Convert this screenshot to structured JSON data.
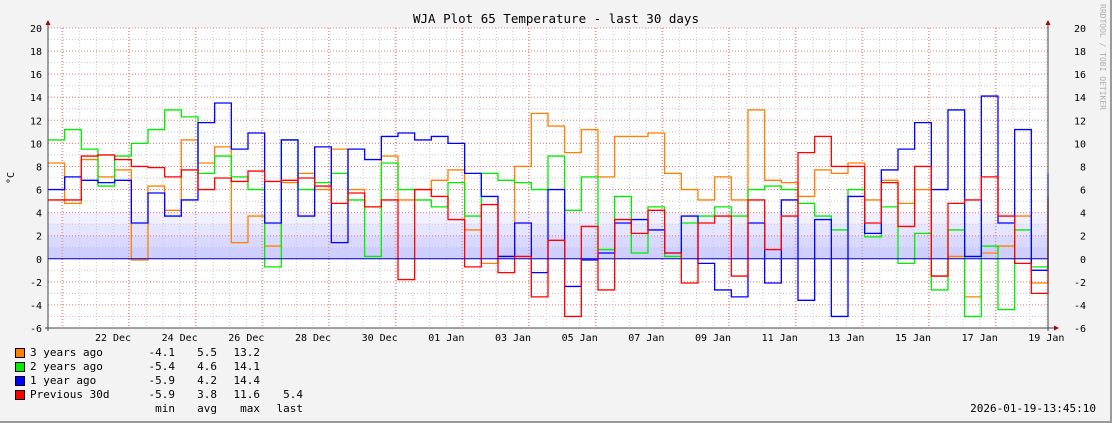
{
  "chart_data": {
    "type": "line",
    "title": "WJA Plot 65 Temperature - last 30 days",
    "ylabel": "°C",
    "watermark": "RRDTOOL / TOBI OETIKER",
    "ylim": [
      -6,
      20
    ],
    "yticks": [
      -6,
      -4,
      -2,
      0,
      2,
      4,
      6,
      8,
      10,
      12,
      14,
      16,
      18,
      20
    ],
    "x_range_days": [
      0,
      30
    ],
    "sample_interval_days": 0.5,
    "xticks": [
      {
        "day": 1.95,
        "label": "22 Dec"
      },
      {
        "day": 3.95,
        "label": "24 Dec"
      },
      {
        "day": 5.95,
        "label": "26 Dec"
      },
      {
        "day": 7.95,
        "label": "28 Dec"
      },
      {
        "day": 9.95,
        "label": "30 Dec"
      },
      {
        "day": 11.95,
        "label": "01 Jan"
      },
      {
        "day": 13.95,
        "label": "03 Jan"
      },
      {
        "day": 15.95,
        "label": "05 Jan"
      },
      {
        "day": 17.95,
        "label": "07 Jan"
      },
      {
        "day": 19.95,
        "label": "09 Jan"
      },
      {
        "day": 21.95,
        "label": "11 Jan"
      },
      {
        "day": 23.95,
        "label": "13 Jan"
      },
      {
        "day": 25.95,
        "label": "15 Jan"
      },
      {
        "day": 27.95,
        "label": "17 Jan"
      },
      {
        "day": 29.95,
        "label": "19 Jan"
      }
    ],
    "band": {
      "from": 0,
      "to": 4,
      "color": "#ccccff"
    },
    "grid": true,
    "series": [
      {
        "name": "3 years ago",
        "color": "#ff8000",
        "min": "-4.1",
        "avg": "5.5",
        "max": "13.2",
        "last": "",
        "values": [
          8.3,
          4.8,
          8.6,
          7.1,
          7.7,
          -0.1,
          6.3,
          4.2,
          10.3,
          8.3,
          9.7,
          1.4,
          3.7,
          1.1,
          6.6,
          7.4,
          6,
          9.5,
          6,
          4.5,
          8.9,
          5.1,
          6,
          6.8,
          7.7,
          2.5,
          -0.4,
          0.2,
          8,
          12.6,
          11.5,
          9.2,
          11.2,
          7.1,
          10.6,
          10.6,
          10.9,
          7.4,
          6,
          5.1,
          7.1,
          5.1,
          12.9,
          6.8,
          6.6,
          5.4,
          7.7,
          7.4,
          8.3,
          5.1,
          6.8,
          4.8,
          6,
          -1.5,
          0.2,
          -3.3,
          0.5,
          1.1,
          3.7,
          -2.1,
          3.7
        ]
      },
      {
        "name": "2 years ago",
        "color": "#00ee00",
        "min": "-5.4",
        "avg": "4.6",
        "max": "14.1",
        "last": "",
        "values": [
          10.3,
          11.2,
          9.5,
          6.3,
          8.9,
          10,
          11.2,
          12.9,
          12.3,
          7.4,
          8.9,
          7.1,
          6,
          -0.7,
          10.3,
          6,
          6.6,
          7.4,
          5.1,
          0.2,
          8.3,
          6,
          5.1,
          4.5,
          6.6,
          3.7,
          7.4,
          6.8,
          6.6,
          6,
          8.9,
          4.2,
          7.1,
          0.8,
          5.4,
          0.5,
          4.5,
          0.2,
          3.1,
          3.7,
          4.5,
          3.7,
          6,
          6.3,
          6,
          4.8,
          3.7,
          2.5,
          6,
          1.9,
          4.5,
          -0.4,
          2.2,
          -2.7,
          2.5,
          -5,
          1.1,
          -4.4,
          2.5,
          -0.7,
          5.1
        ]
      },
      {
        "name": "1 year ago",
        "color": "#0000ff",
        "min": "-5.9",
        "avg": "4.2",
        "max": "14.4",
        "last": "",
        "values": [
          6,
          7.1,
          6.8,
          6.6,
          6.8,
          3.1,
          5.7,
          3.7,
          5.1,
          11.8,
          13.5,
          9.5,
          10.9,
          3.1,
          10.3,
          3.7,
          9.7,
          1.4,
          9.5,
          8.6,
          10.6,
          10.9,
          10.3,
          10.6,
          10,
          7.4,
          5.4,
          0.2,
          3.1,
          -1.2,
          6,
          -2.4,
          -0.1,
          0.5,
          3.1,
          3.4,
          2.5,
          0.5,
          3.7,
          -0.4,
          -2.7,
          -3.3,
          3.1,
          -2.1,
          5.1,
          -3.6,
          3.4,
          -5,
          5.4,
          2.2,
          7.7,
          9.5,
          11.8,
          6,
          12.9,
          0.2,
          14.1,
          3.1,
          11.2,
          -1,
          7.4
        ]
      },
      {
        "name": "Previous 30d",
        "color": "#ff0000",
        "min": "-5.9",
        "avg": "3.8",
        "max": "11.6",
        "last": "5.4",
        "values": [
          5.1,
          5.1,
          8.9,
          9,
          8.6,
          8,
          7.9,
          7.1,
          7.7,
          6,
          7,
          6.7,
          7.6,
          6.7,
          6.8,
          7,
          6.3,
          4.8,
          5.7,
          4.5,
          5.1,
          -1.8,
          6,
          5.4,
          3.4,
          -0.7,
          4.7,
          -1.2,
          0.2,
          -3.3,
          1.6,
          -5,
          2.8,
          -2.7,
          3.4,
          2.2,
          4.2,
          0.5,
          -2.1,
          3.1,
          3.7,
          -1.5,
          5.1,
          0.8,
          3.7,
          9.2,
          10.6,
          8,
          8,
          3.1,
          6.6,
          2.8,
          8,
          -1.5,
          4.8,
          5.1,
          7.1,
          3.7,
          -0.4,
          -3,
          5.4
        ]
      }
    ],
    "legend_columns": [
      "min",
      "avg",
      "max",
      "last"
    ],
    "legend_position": "bottom-left",
    "timestamp": "2026-01-19-13:45:10"
  }
}
